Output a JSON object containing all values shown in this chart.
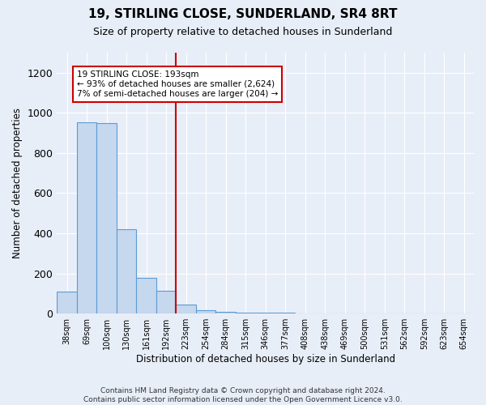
{
  "title": "19, STIRLING CLOSE, SUNDERLAND, SR4 8RT",
  "subtitle": "Size of property relative to detached houses in Sunderland",
  "xlabel": "Distribution of detached houses by size in Sunderland",
  "ylabel": "Number of detached properties",
  "categories": [
    "38sqm",
    "69sqm",
    "100sqm",
    "130sqm",
    "161sqm",
    "192sqm",
    "223sqm",
    "254sqm",
    "284sqm",
    "315sqm",
    "346sqm",
    "377sqm",
    "408sqm",
    "438sqm",
    "469sqm",
    "500sqm",
    "531sqm",
    "562sqm",
    "592sqm",
    "623sqm",
    "654sqm"
  ],
  "values": [
    110,
    955,
    950,
    420,
    180,
    115,
    45,
    18,
    8,
    5,
    4,
    3,
    2,
    2,
    2,
    1,
    1,
    1,
    1,
    1,
    1
  ],
  "bar_color": "#c5d8ee",
  "bar_edge_color": "#5b9bd5",
  "annotation_text": "19 STIRLING CLOSE: 193sqm\n← 93% of detached houses are smaller (2,624)\n7% of semi-detached houses are larger (204) →",
  "annotation_box_color": "white",
  "annotation_box_edge_color": "#cc0000",
  "vline_x": 5.5,
  "vline_color": "#cc0000",
  "ylim": [
    0,
    1300
  ],
  "yticks": [
    0,
    200,
    400,
    600,
    800,
    1000,
    1200
  ],
  "footnote": "Contains HM Land Registry data © Crown copyright and database right 2024.\nContains public sector information licensed under the Open Government Licence v3.0.",
  "bg_color": "#e8eef8",
  "plot_bg_color": "#e8eef8",
  "title_fontsize": 11,
  "subtitle_fontsize": 9,
  "footnote_fontsize": 6.5
}
